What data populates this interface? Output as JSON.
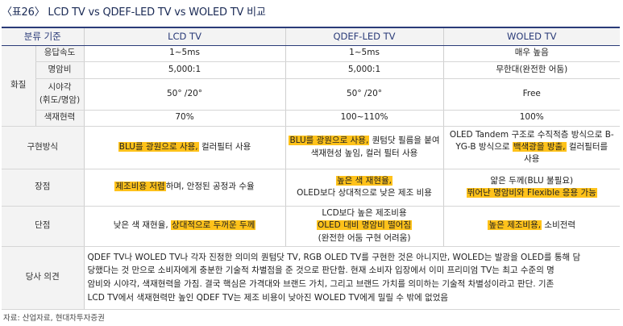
{
  "title": "〈표26〉 LCD TV vs QDEF-LED TV vs WOLED TV 비교",
  "header": {
    "category": "분류 기준",
    "col1": "LCD TV",
    "col2": "QDEF-LED TV",
    "col3": "WOLED TV"
  },
  "picture_quality": {
    "label": "화질",
    "rows": [
      {
        "label": "응답속도",
        "lcd": "1~5ms",
        "qdef": "1~5ms",
        "woled": "매우 높음"
      },
      {
        "label": "명암비",
        "lcd": "5,000:1",
        "qdef": "5,000:1",
        "woled": "무한대(완전한 어둠)"
      },
      {
        "label_line1": "시야각",
        "label_line2": "(휘도/명암)",
        "lcd": "50° /20°",
        "qdef": "50° /20°",
        "woled": "Free"
      },
      {
        "label": "색재현력",
        "lcd": "70%",
        "qdef": "100~110%",
        "woled": "100%"
      }
    ]
  },
  "implementation": {
    "label": "구현방식",
    "lcd_hl": "BLU를 광원으로 사용,",
    "lcd_rest": " 컬러필터 사용",
    "qdef_hl": "BLU를 광원으로 사용,",
    "qdef_rest": " 퀀텀닷 필름을 붙여",
    "qdef_line2": "색재현성 높임, 컬러 필터 사용",
    "woled_line1": "OLED Tandem 구조로 수직적층 방식으로 B-",
    "woled_pre": "YG-B 방식으로 ",
    "woled_hl": "백색광을 방출,",
    "woled_post": " 컬러필터를",
    "woled_line3": "사용"
  },
  "pros": {
    "label": "장점",
    "lcd_hl": "제조비용 저렴",
    "lcd_rest": "하며, 안정된 공정과 수율",
    "qdef_hl": "높은 색 재현율,",
    "qdef_line2": "OLED보다 상대적으로 낮은 제조 비용",
    "woled_line1": "얇은 두께(BLU 불필요)",
    "woled_hl": "뛰어난 명암비와 Flexible 응용 가능"
  },
  "cons": {
    "label": "단점",
    "lcd_pre": "낮은 색 재현율, ",
    "lcd_hl": "상대적으로 두꺼운 두께",
    "qdef_line1": "LCD보다 높은 제조비용",
    "qdef_hl": "OLED 대비 명암비 떨어짐",
    "qdef_line3": "(완전한 어둠 구현 어려움)",
    "woled_hl": "높은 제조비용,",
    "woled_rest": " 소비전력"
  },
  "opinion": {
    "label": "당사 의견",
    "line1": "QDEF TV나 WOLED TV나 각자 진정한 의미의 퀀텀닷 TV, RGB OLED TV를 구현한 것은 아니지만, WOLED는 발광을 OLED를 통해 담",
    "line2": "당했다는 것 만으로 소비자에게 충분한 기술적 차별점을 준 것으로 판단함. 현재 소비자 입장에서 이미 프리미엄 TV는 최고 수준의 명",
    "line3": "암비와 시야각, 색재현력을 가짐. 결국 핵심은 가격대와 브랜드 가치, 그리고 브랜드 가치를 의미하는 기술적 차별성이라고 판단. 기존",
    "line4": "LCD TV에서 색재현력만 높인 QDEF TV는 제조 비용이 낮아진 WOLED TV에게 밀릴 수 밖에 없었음"
  },
  "source": "자료: 산업자료, 현대차투자증권",
  "colors": {
    "header_blue": "#2a3b78",
    "highlight": "#ffc21a",
    "cell_gray": "#f3f3f3"
  }
}
